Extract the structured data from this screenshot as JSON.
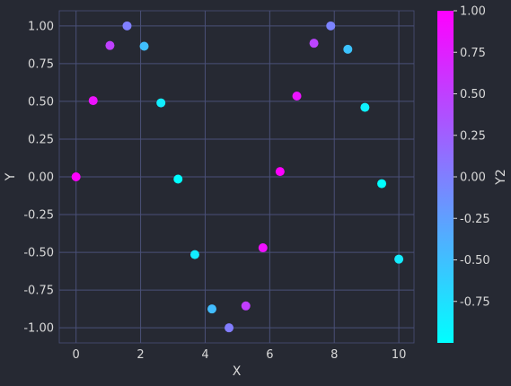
{
  "chart_data": {
    "type": "scatter",
    "xlabel": "X",
    "ylabel": "Y",
    "colorbar_label": "Y2",
    "xlim": [
      -0.52,
      10.47
    ],
    "ylim": [
      -1.1,
      1.1
    ],
    "xticks": [
      0,
      2,
      4,
      6,
      8,
      10
    ],
    "yticks": [
      -1.0,
      -0.75,
      -0.5,
      -0.25,
      0.0,
      0.25,
      0.5,
      0.75,
      1.0
    ],
    "grid": true,
    "colorbar": {
      "range": [
        -1.0,
        1.0
      ],
      "ticks": [
        -0.75,
        -0.5,
        -0.25,
        0.0,
        0.25,
        0.5,
        0.75,
        1.0
      ],
      "colormap": [
        "#00ffff",
        "#ff00ff"
      ]
    },
    "points": [
      {
        "x": 0.0,
        "y": 0.0,
        "c": 1.0
      },
      {
        "x": 0.53,
        "y": 0.505,
        "c": 0.86
      },
      {
        "x": 1.05,
        "y": 0.87,
        "c": 0.5
      },
      {
        "x": 1.58,
        "y": 1.0,
        "c": 0.0
      },
      {
        "x": 2.11,
        "y": 0.865,
        "c": -0.5
      },
      {
        "x": 2.63,
        "y": 0.49,
        "c": -0.87
      },
      {
        "x": 3.16,
        "y": -0.015,
        "c": -1.0
      },
      {
        "x": 3.68,
        "y": -0.515,
        "c": -0.86
      },
      {
        "x": 4.21,
        "y": -0.875,
        "c": -0.48
      },
      {
        "x": 4.74,
        "y": -1.0,
        "c": 0.02
      },
      {
        "x": 5.26,
        "y": -0.855,
        "c": 0.52
      },
      {
        "x": 5.79,
        "y": -0.47,
        "c": 0.88
      },
      {
        "x": 6.32,
        "y": 0.035,
        "c": 1.0
      },
      {
        "x": 6.84,
        "y": 0.535,
        "c": 0.85
      },
      {
        "x": 7.37,
        "y": 0.885,
        "c": 0.47
      },
      {
        "x": 7.89,
        "y": 1.0,
        "c": -0.03
      },
      {
        "x": 8.42,
        "y": 0.845,
        "c": -0.53
      },
      {
        "x": 8.95,
        "y": 0.46,
        "c": -0.89
      },
      {
        "x": 9.47,
        "y": -0.045,
        "c": -1.0
      },
      {
        "x": 10.0,
        "y": -0.545,
        "c": -0.84
      }
    ]
  }
}
